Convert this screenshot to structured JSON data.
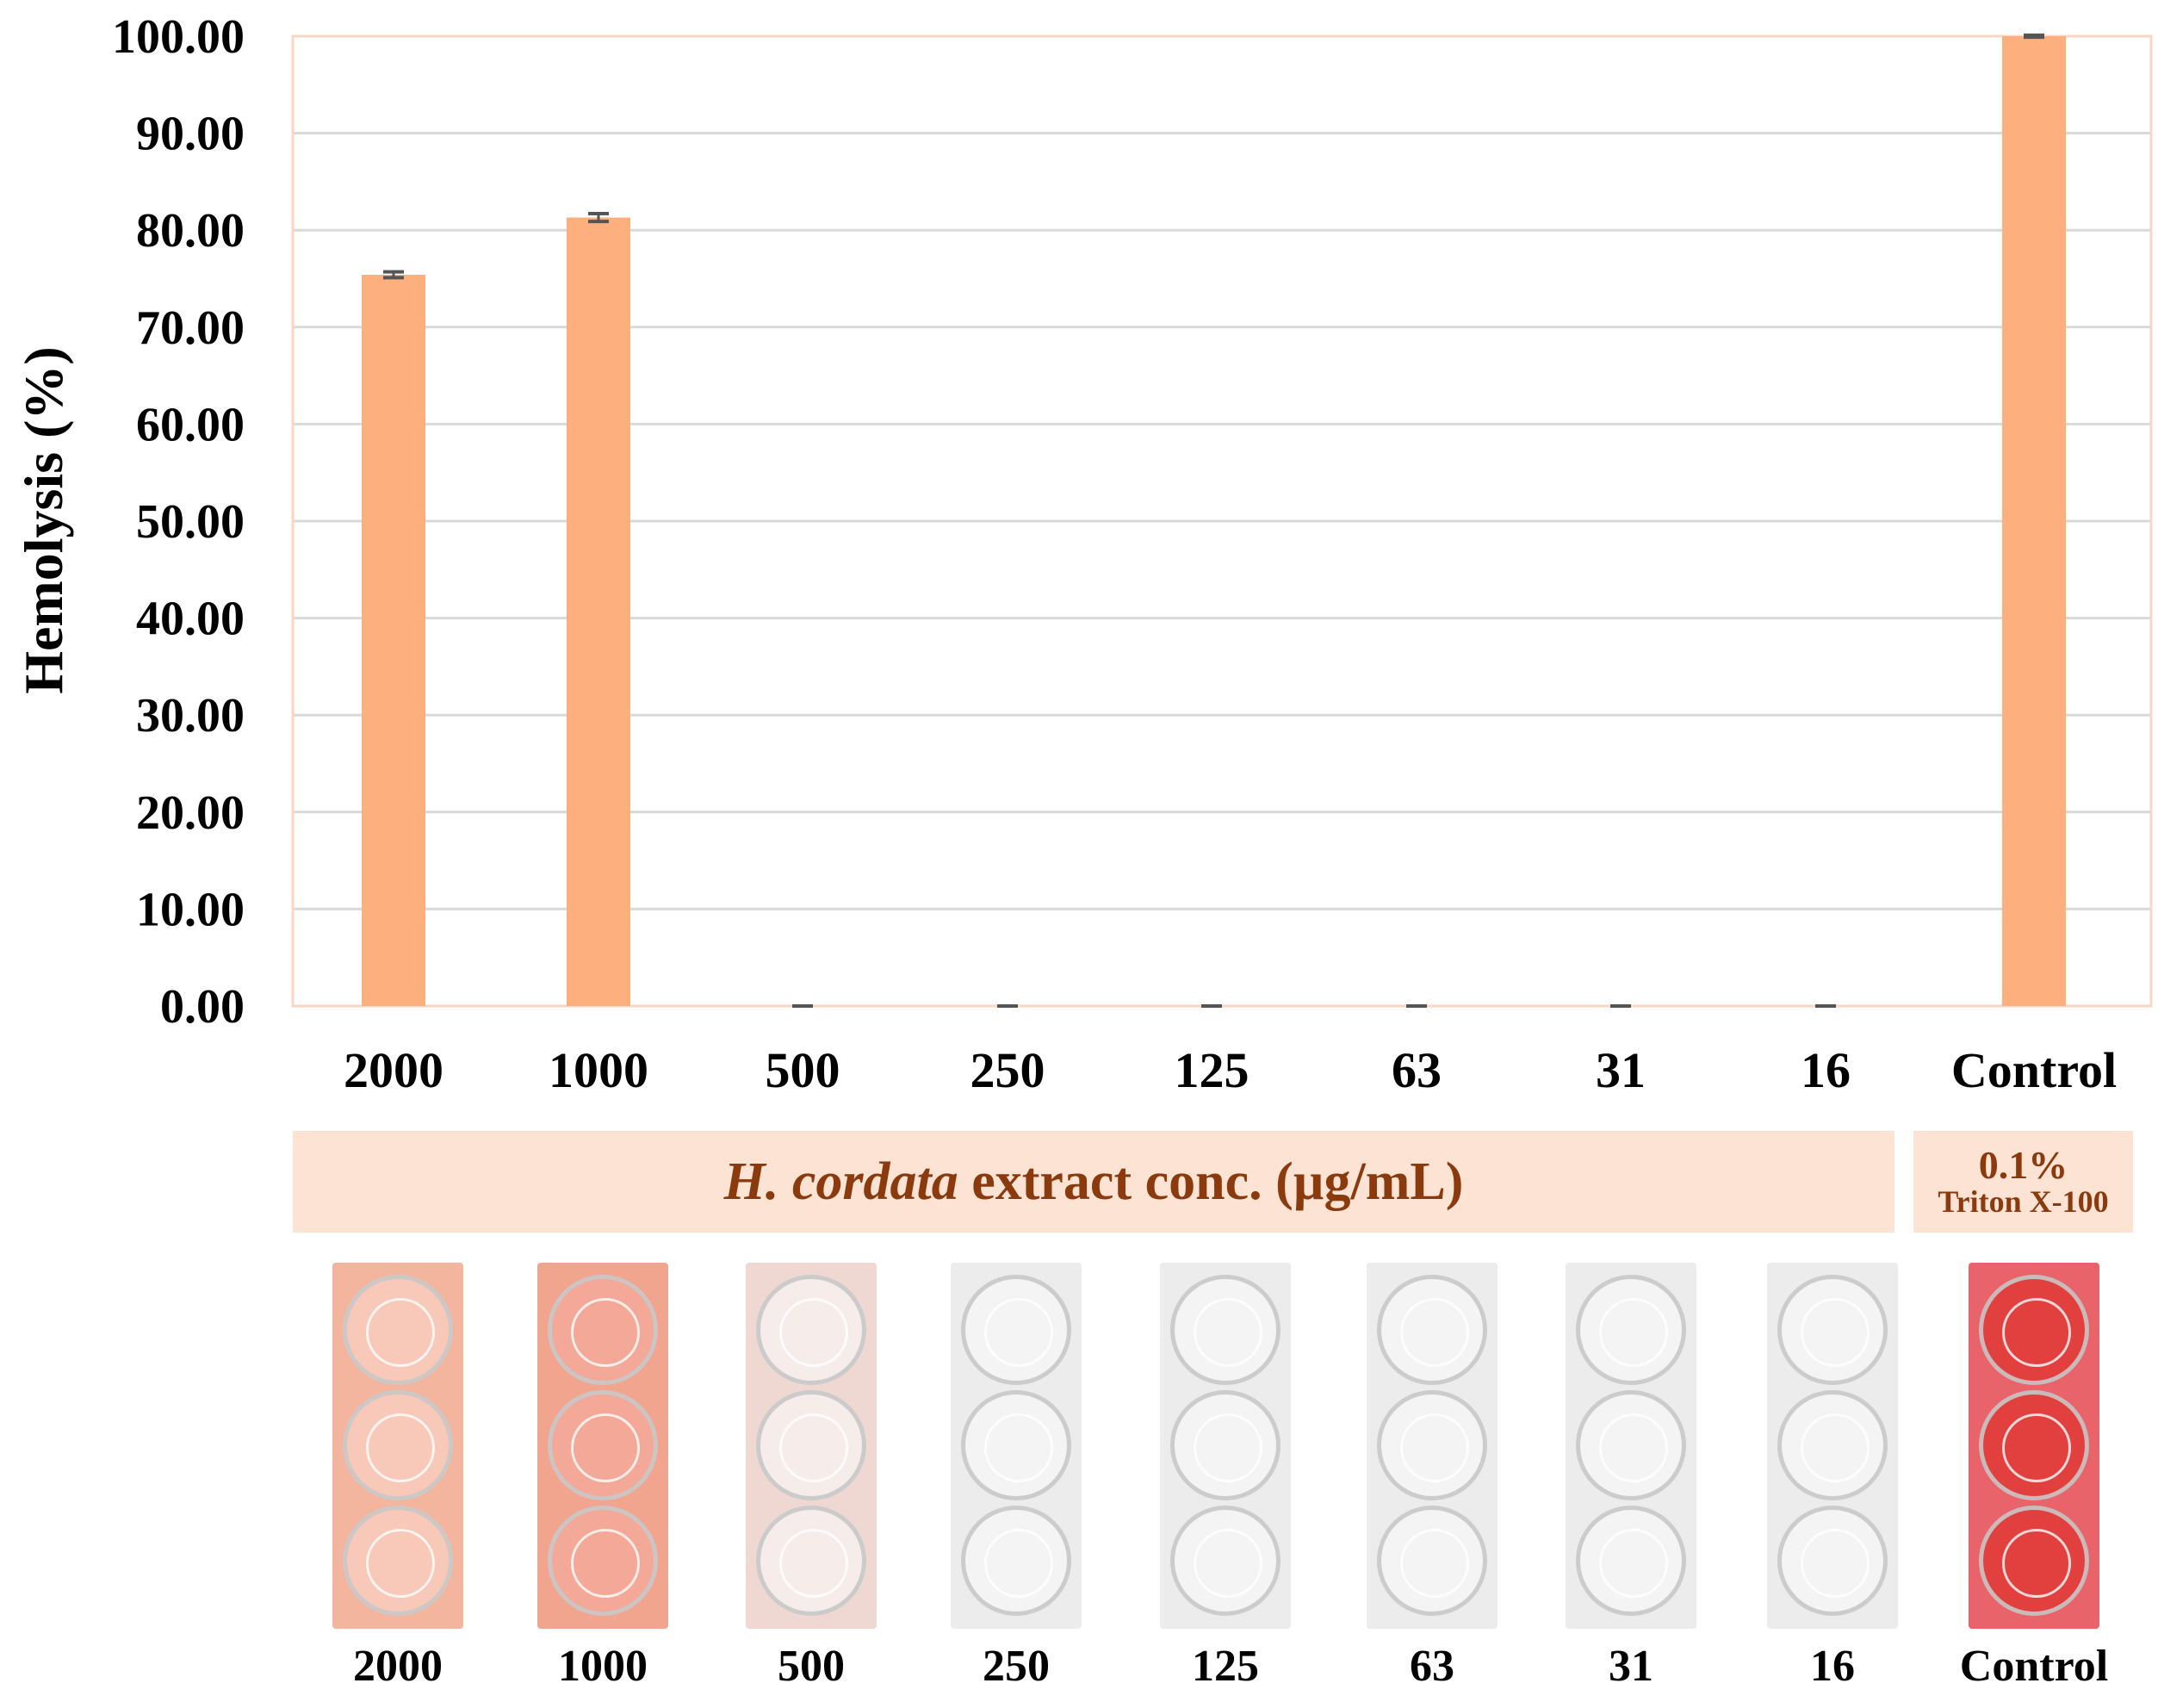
{
  "chart_data": {
    "type": "bar",
    "categories": [
      "2000",
      "1000",
      "500",
      "250",
      "125",
      "63",
      "31",
      "16",
      "Control"
    ],
    "values": [
      75.4,
      81.3,
      0.0,
      0.0,
      0.0,
      0.0,
      0.0,
      0.0,
      100.0
    ],
    "errors": [
      0.3,
      0.4,
      0.0,
      0.0,
      0.0,
      0.0,
      0.0,
      0.0,
      0.1
    ],
    "ylabel": "Hemolysis (%)",
    "ylim": [
      0,
      100
    ],
    "yticks": [
      "0.00",
      "10.00",
      "20.00",
      "30.00",
      "40.00",
      "50.00",
      "60.00",
      "70.00",
      "80.00",
      "90.00",
      "100.00"
    ],
    "grid": true,
    "bar_color": "#fdb07e",
    "grid_color": "#d9d9d9",
    "axis_color": "#fbd6c0"
  },
  "bands": {
    "extract_italic": "H. cordata",
    "extract_rest": " extract conc. (µg/mL)",
    "control_line1": "0.1%",
    "control_line2": "Triton X-100"
  },
  "plate_labels": [
    "2000",
    "1000",
    "500",
    "250",
    "125",
    "63",
    "31",
    "16",
    "Control"
  ],
  "plate_tints": [
    "#f4b59e",
    "#f2a58e",
    "#f0d8d2",
    "#ececec",
    "#ececec",
    "#ececec",
    "#ececec",
    "#ececec",
    "#e8646a"
  ],
  "well_fills": [
    "#f8c8b8",
    "#f3a898",
    "#f6ecea",
    "#f4f4f4",
    "#f4f4f4",
    "#f4f4f4",
    "#f4f4f4",
    "#f4f4f4",
    "#e2403f"
  ]
}
